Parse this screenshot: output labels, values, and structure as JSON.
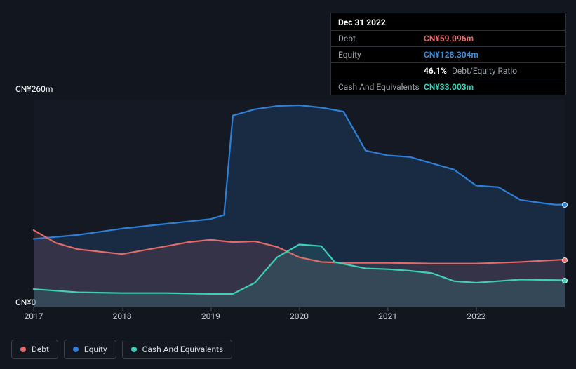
{
  "tooltip": {
    "title": "Dec 31 2022",
    "rows": [
      {
        "label": "Debt",
        "value": "CN¥59.096m",
        "cls": "debt"
      },
      {
        "label": "Equity",
        "value": "CN¥128.304m",
        "cls": "equity"
      },
      {
        "label": "",
        "value": "46.1%",
        "suffix": "Debt/Equity Ratio",
        "cls": ""
      },
      {
        "label": "Cash And Equivalents",
        "value": "CN¥33.003m",
        "cls": "cash"
      }
    ]
  },
  "chart": {
    "type": "area-line",
    "background_color": "#11161f",
    "plot_bg": "rgba(30,37,48,0.25)",
    "grid_color": "#2a2f38",
    "y": {
      "min": 0,
      "max": 260,
      "top_label": "CN¥260m",
      "bottom_label": "CN¥0"
    },
    "x": {
      "min": 2017,
      "max": 2023,
      "ticks": [
        {
          "v": 2017,
          "label": "2017"
        },
        {
          "v": 2018,
          "label": "2018"
        },
        {
          "v": 2019,
          "label": "2019"
        },
        {
          "v": 2020,
          "label": "2020"
        },
        {
          "v": 2021,
          "label": "2021"
        },
        {
          "v": 2022,
          "label": "2022"
        }
      ]
    },
    "series": [
      {
        "name": "Equity",
        "color": "#2f7fd6",
        "fill": "rgba(47,127,214,0.18)",
        "stroke_width": 2.2,
        "points": [
          [
            2017.0,
            85
          ],
          [
            2017.5,
            90
          ],
          [
            2018.0,
            98
          ],
          [
            2018.5,
            104
          ],
          [
            2019.0,
            110
          ],
          [
            2019.15,
            115
          ],
          [
            2019.25,
            240
          ],
          [
            2019.5,
            248
          ],
          [
            2019.75,
            252
          ],
          [
            2020.0,
            253
          ],
          [
            2020.25,
            250
          ],
          [
            2020.5,
            245
          ],
          [
            2020.75,
            196
          ],
          [
            2021.0,
            190
          ],
          [
            2021.25,
            188
          ],
          [
            2021.5,
            180
          ],
          [
            2021.75,
            172
          ],
          [
            2022.0,
            152
          ],
          [
            2022.25,
            150
          ],
          [
            2022.5,
            134
          ],
          [
            2022.75,
            130
          ],
          [
            2022.9,
            128
          ],
          [
            2023.0,
            128.3
          ]
        ]
      },
      {
        "name": "Debt",
        "color": "#e26a6a",
        "fill": "rgba(226,106,106,0.14)",
        "stroke_width": 2.2,
        "points": [
          [
            2017.0,
            96
          ],
          [
            2017.25,
            80
          ],
          [
            2017.5,
            72
          ],
          [
            2018.0,
            66
          ],
          [
            2018.5,
            76
          ],
          [
            2018.75,
            81
          ],
          [
            2019.0,
            84
          ],
          [
            2019.25,
            81
          ],
          [
            2019.5,
            82
          ],
          [
            2019.75,
            75
          ],
          [
            2020.0,
            62
          ],
          [
            2020.25,
            56
          ],
          [
            2020.5,
            55
          ],
          [
            2021.0,
            55
          ],
          [
            2021.5,
            54
          ],
          [
            2022.0,
            54
          ],
          [
            2022.5,
            56
          ],
          [
            2023.0,
            59.1
          ]
        ]
      },
      {
        "name": "Cash And Equivalents",
        "color": "#3fd0b7",
        "fill": "rgba(63,208,183,0.14)",
        "stroke_width": 2.2,
        "points": [
          [
            2017.0,
            22
          ],
          [
            2017.5,
            18
          ],
          [
            2018.0,
            17
          ],
          [
            2018.5,
            17
          ],
          [
            2019.0,
            16
          ],
          [
            2019.25,
            16
          ],
          [
            2019.5,
            30
          ],
          [
            2019.75,
            62
          ],
          [
            2020.0,
            78
          ],
          [
            2020.25,
            76
          ],
          [
            2020.4,
            56
          ],
          [
            2020.75,
            48
          ],
          [
            2021.0,
            47
          ],
          [
            2021.25,
            45
          ],
          [
            2021.5,
            42
          ],
          [
            2021.75,
            32
          ],
          [
            2022.0,
            30
          ],
          [
            2022.5,
            34
          ],
          [
            2023.0,
            33.0
          ]
        ]
      }
    ],
    "legend": [
      {
        "label": "Debt",
        "color": "#e26a6a"
      },
      {
        "label": "Equity",
        "color": "#2f7fd6"
      },
      {
        "label": "Cash And Equivalents",
        "color": "#3fd0b7"
      }
    ],
    "label_fontsize": 12,
    "tick_fontsize": 12
  }
}
